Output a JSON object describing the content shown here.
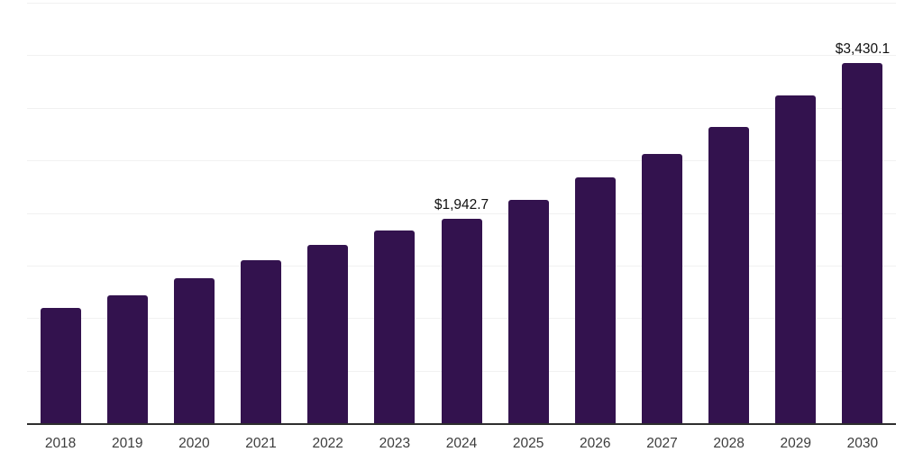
{
  "chart_data": {
    "type": "bar",
    "title": "",
    "xlabel": "",
    "ylabel": "",
    "categories": [
      "2018",
      "2019",
      "2020",
      "2021",
      "2022",
      "2023",
      "2024",
      "2025",
      "2026",
      "2027",
      "2028",
      "2029",
      "2030"
    ],
    "values": [
      1100,
      1212,
      1378,
      1548,
      1695,
      1830,
      1942.7,
      2126,
      2335,
      2565,
      2822,
      3114,
      3430.1
    ],
    "ylim": [
      0,
      4000
    ],
    "gridline_step": 500,
    "grid": true,
    "legend_position": "none",
    "y_axis_labels_visible": false,
    "annotations": [
      {
        "category": "2024",
        "label": "$1,942.7"
      },
      {
        "category": "2030",
        "label": "$3,430.1"
      }
    ],
    "colors": {
      "bar": "#33124e",
      "gridline": "#f1f1f1",
      "axis": "#2e2e2e",
      "tick_text": "#3d3d3d",
      "annotation_text": "#101010",
      "background": "#ffffff"
    }
  }
}
